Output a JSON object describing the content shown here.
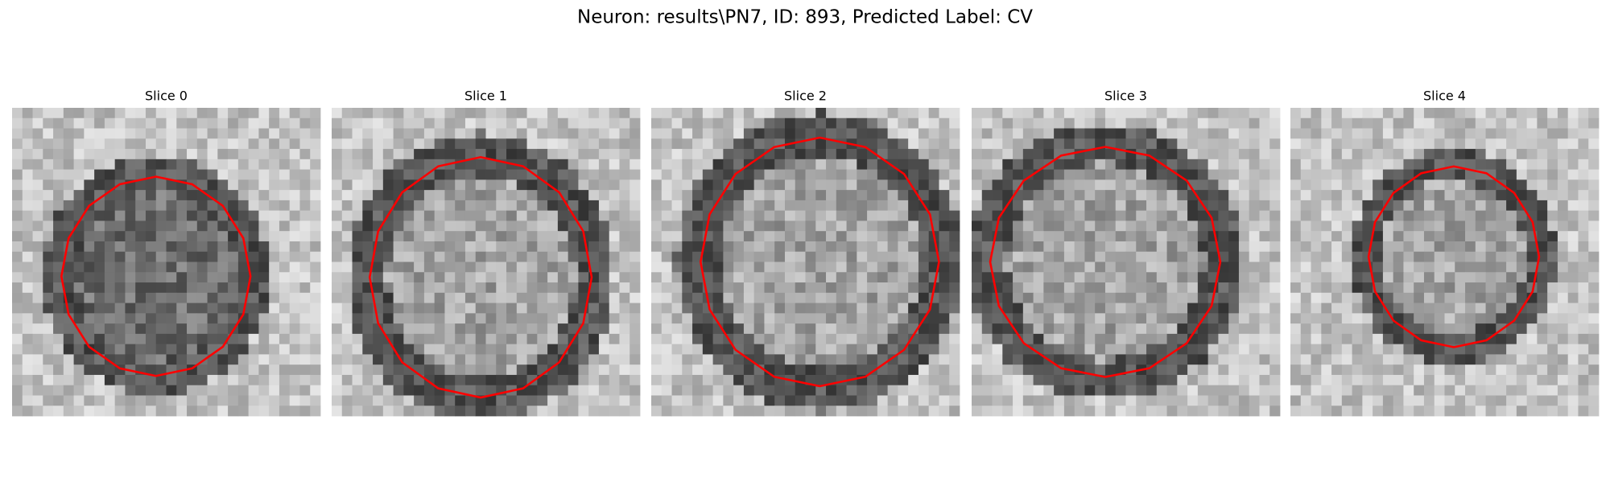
{
  "title": "Neuron: results\\PN7, ID: 893, Predicted Label: CV",
  "panels": [
    {
      "title": "Slice 0"
    },
    {
      "title": "Slice 1"
    },
    {
      "title": "Slice 2"
    },
    {
      "title": "Slice 3"
    },
    {
      "title": "Slice 4"
    }
  ]
}
